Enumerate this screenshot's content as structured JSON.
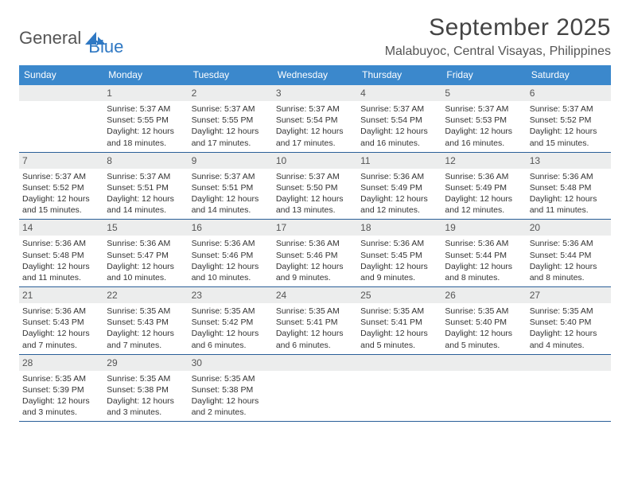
{
  "logo": {
    "word1": "General",
    "word2": "Blue"
  },
  "title": "September 2025",
  "location": "Malabuyoc, Central Visayas, Philippines",
  "colors": {
    "header_bg": "#3b88cc",
    "header_fg": "#ffffff",
    "daynum_bg": "#eceded",
    "week_border": "#2a5f98",
    "logo_blue": "#2f78c3"
  },
  "day_names": [
    "Sunday",
    "Monday",
    "Tuesday",
    "Wednesday",
    "Thursday",
    "Friday",
    "Saturday"
  ],
  "weeks": [
    [
      {
        "num": "",
        "lines": []
      },
      {
        "num": "1",
        "lines": [
          "Sunrise: 5:37 AM",
          "Sunset: 5:55 PM",
          "Daylight: 12 hours",
          "and 18 minutes."
        ]
      },
      {
        "num": "2",
        "lines": [
          "Sunrise: 5:37 AM",
          "Sunset: 5:55 PM",
          "Daylight: 12 hours",
          "and 17 minutes."
        ]
      },
      {
        "num": "3",
        "lines": [
          "Sunrise: 5:37 AM",
          "Sunset: 5:54 PM",
          "Daylight: 12 hours",
          "and 17 minutes."
        ]
      },
      {
        "num": "4",
        "lines": [
          "Sunrise: 5:37 AM",
          "Sunset: 5:54 PM",
          "Daylight: 12 hours",
          "and 16 minutes."
        ]
      },
      {
        "num": "5",
        "lines": [
          "Sunrise: 5:37 AM",
          "Sunset: 5:53 PM",
          "Daylight: 12 hours",
          "and 16 minutes."
        ]
      },
      {
        "num": "6",
        "lines": [
          "Sunrise: 5:37 AM",
          "Sunset: 5:52 PM",
          "Daylight: 12 hours",
          "and 15 minutes."
        ]
      }
    ],
    [
      {
        "num": "7",
        "lines": [
          "Sunrise: 5:37 AM",
          "Sunset: 5:52 PM",
          "Daylight: 12 hours",
          "and 15 minutes."
        ]
      },
      {
        "num": "8",
        "lines": [
          "Sunrise: 5:37 AM",
          "Sunset: 5:51 PM",
          "Daylight: 12 hours",
          "and 14 minutes."
        ]
      },
      {
        "num": "9",
        "lines": [
          "Sunrise: 5:37 AM",
          "Sunset: 5:51 PM",
          "Daylight: 12 hours",
          "and 14 minutes."
        ]
      },
      {
        "num": "10",
        "lines": [
          "Sunrise: 5:37 AM",
          "Sunset: 5:50 PM",
          "Daylight: 12 hours",
          "and 13 minutes."
        ]
      },
      {
        "num": "11",
        "lines": [
          "Sunrise: 5:36 AM",
          "Sunset: 5:49 PM",
          "Daylight: 12 hours",
          "and 12 minutes."
        ]
      },
      {
        "num": "12",
        "lines": [
          "Sunrise: 5:36 AM",
          "Sunset: 5:49 PM",
          "Daylight: 12 hours",
          "and 12 minutes."
        ]
      },
      {
        "num": "13",
        "lines": [
          "Sunrise: 5:36 AM",
          "Sunset: 5:48 PM",
          "Daylight: 12 hours",
          "and 11 minutes."
        ]
      }
    ],
    [
      {
        "num": "14",
        "lines": [
          "Sunrise: 5:36 AM",
          "Sunset: 5:48 PM",
          "Daylight: 12 hours",
          "and 11 minutes."
        ]
      },
      {
        "num": "15",
        "lines": [
          "Sunrise: 5:36 AM",
          "Sunset: 5:47 PM",
          "Daylight: 12 hours",
          "and 10 minutes."
        ]
      },
      {
        "num": "16",
        "lines": [
          "Sunrise: 5:36 AM",
          "Sunset: 5:46 PM",
          "Daylight: 12 hours",
          "and 10 minutes."
        ]
      },
      {
        "num": "17",
        "lines": [
          "Sunrise: 5:36 AM",
          "Sunset: 5:46 PM",
          "Daylight: 12 hours",
          "and 9 minutes."
        ]
      },
      {
        "num": "18",
        "lines": [
          "Sunrise: 5:36 AM",
          "Sunset: 5:45 PM",
          "Daylight: 12 hours",
          "and 9 minutes."
        ]
      },
      {
        "num": "19",
        "lines": [
          "Sunrise: 5:36 AM",
          "Sunset: 5:44 PM",
          "Daylight: 12 hours",
          "and 8 minutes."
        ]
      },
      {
        "num": "20",
        "lines": [
          "Sunrise: 5:36 AM",
          "Sunset: 5:44 PM",
          "Daylight: 12 hours",
          "and 8 minutes."
        ]
      }
    ],
    [
      {
        "num": "21",
        "lines": [
          "Sunrise: 5:36 AM",
          "Sunset: 5:43 PM",
          "Daylight: 12 hours",
          "and 7 minutes."
        ]
      },
      {
        "num": "22",
        "lines": [
          "Sunrise: 5:35 AM",
          "Sunset: 5:43 PM",
          "Daylight: 12 hours",
          "and 7 minutes."
        ]
      },
      {
        "num": "23",
        "lines": [
          "Sunrise: 5:35 AM",
          "Sunset: 5:42 PM",
          "Daylight: 12 hours",
          "and 6 minutes."
        ]
      },
      {
        "num": "24",
        "lines": [
          "Sunrise: 5:35 AM",
          "Sunset: 5:41 PM",
          "Daylight: 12 hours",
          "and 6 minutes."
        ]
      },
      {
        "num": "25",
        "lines": [
          "Sunrise: 5:35 AM",
          "Sunset: 5:41 PM",
          "Daylight: 12 hours",
          "and 5 minutes."
        ]
      },
      {
        "num": "26",
        "lines": [
          "Sunrise: 5:35 AM",
          "Sunset: 5:40 PM",
          "Daylight: 12 hours",
          "and 5 minutes."
        ]
      },
      {
        "num": "27",
        "lines": [
          "Sunrise: 5:35 AM",
          "Sunset: 5:40 PM",
          "Daylight: 12 hours",
          "and 4 minutes."
        ]
      }
    ],
    [
      {
        "num": "28",
        "lines": [
          "Sunrise: 5:35 AM",
          "Sunset: 5:39 PM",
          "Daylight: 12 hours",
          "and 3 minutes."
        ]
      },
      {
        "num": "29",
        "lines": [
          "Sunrise: 5:35 AM",
          "Sunset: 5:38 PM",
          "Daylight: 12 hours",
          "and 3 minutes."
        ]
      },
      {
        "num": "30",
        "lines": [
          "Sunrise: 5:35 AM",
          "Sunset: 5:38 PM",
          "Daylight: 12 hours",
          "and 2 minutes."
        ]
      },
      {
        "num": "",
        "lines": []
      },
      {
        "num": "",
        "lines": []
      },
      {
        "num": "",
        "lines": []
      },
      {
        "num": "",
        "lines": []
      }
    ]
  ]
}
